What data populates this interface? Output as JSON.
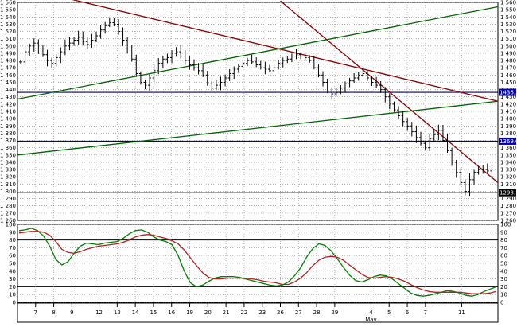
{
  "chart_data": [
    {
      "type": "line",
      "title": "",
      "xlabel": "",
      "ylabel": "",
      "ylim": [
        1260,
        1560
      ],
      "yticks": [
        1260,
        1270,
        1280,
        1290,
        1300,
        1310,
        1320,
        1330,
        1340,
        1350,
        1360,
        1370,
        1380,
        1390,
        1400,
        1410,
        1420,
        1430,
        1440,
        1450,
        1460,
        1470,
        1480,
        1490,
        1500,
        1510,
        1520,
        1530,
        1540,
        1550,
        1560
      ],
      "grid": true,
      "x_tick_labels": [
        "7",
        "8",
        "9",
        "12",
        "13",
        "14",
        "15",
        "16",
        "19",
        "20",
        "21",
        "22",
        "23",
        "26",
        "27",
        "28",
        "29",
        "4",
        "5",
        "6",
        "7",
        "11"
      ],
      "x_tick_day_index": [
        2,
        4,
        6,
        9,
        11,
        13,
        15,
        17,
        19,
        21,
        23,
        25,
        27,
        29,
        31,
        33,
        35,
        39,
        41,
        43,
        45,
        49
      ],
      "month_label": "May",
      "month_label_day_index": 39,
      "highlight_labels": [
        "1436.22",
        "1369.0",
        "1298.1"
      ],
      "horizontal_lines": [
        {
          "y": 1436.22,
          "color": "#000066",
          "label": "1436.22"
        },
        {
          "y": 1369.0,
          "color": "#000099",
          "label": "1369.0"
        },
        {
          "y": 1298.1,
          "color": "#000000",
          "label": "1298.1"
        }
      ],
      "trend_lines": [
        {
          "name": "long-downtrend",
          "color": "#8b0000",
          "points": [
            [
              6,
              1564
            ],
            [
              53,
              1424
            ]
          ]
        },
        {
          "name": "steep-downtrend",
          "color": "#8b0000",
          "points": [
            [
              29,
              1562
            ],
            [
              53,
              1312
            ]
          ]
        },
        {
          "name": "upper-channel",
          "color": "#006400",
          "points": [
            [
              0,
              1427
            ],
            [
              53,
              1554
            ]
          ]
        },
        {
          "name": "lower-channel",
          "color": "#006400",
          "points": [
            [
              0,
              1350
            ],
            [
              53,
              1424
            ]
          ]
        }
      ],
      "series": [
        {
          "kind": "ohlc",
          "color": "#000000",
          "close": [
            1478,
            1492,
            1500,
            1504,
            1496,
            1488,
            1480,
            1476,
            1484,
            1492,
            1500,
            1504,
            1508,
            1512,
            1506,
            1502,
            1508,
            1514,
            1522,
            1528,
            1532,
            1530,
            1520,
            1508,
            1496,
            1482,
            1462,
            1450,
            1446,
            1456,
            1466,
            1476,
            1482,
            1484,
            1490,
            1492,
            1486,
            1480,
            1474,
            1470,
            1466,
            1460,
            1448,
            1442,
            1446,
            1450,
            1456,
            1462,
            1468,
            1472,
            1476,
            1480,
            1478,
            1474,
            1470,
            1468,
            1466,
            1470,
            1476,
            1480,
            1482,
            1486,
            1488,
            1486,
            1484,
            1480,
            1470,
            1460,
            1450,
            1438,
            1434,
            1436,
            1442,
            1448,
            1452,
            1456,
            1460,
            1462,
            1456,
            1450,
            1446,
            1440,
            1430,
            1420,
            1412,
            1404,
            1396,
            1390,
            1382,
            1374,
            1366,
            1360,
            1372,
            1378,
            1384,
            1370,
            1356,
            1340,
            1326,
            1312,
            1300,
            1316,
            1326,
            1330,
            1330,
            1328,
            1320
          ]
        }
      ]
    },
    {
      "type": "line",
      "title": "",
      "xlabel": "",
      "ylabel": "",
      "ylim": [
        0,
        100
      ],
      "yticks": [
        0,
        10,
        20,
        30,
        40,
        50,
        60,
        70,
        80,
        90,
        100
      ],
      "grid": true,
      "reference_lines": [
        20,
        80
      ],
      "series": [
        {
          "name": "",
          "color": "#008000",
          "values": [
            92,
            93,
            95,
            92,
            85,
            72,
            55,
            48,
            52,
            63,
            72,
            76,
            75,
            74,
            76,
            77,
            78,
            82,
            88,
            92,
            93,
            90,
            84,
            80,
            78,
            74,
            60,
            40,
            25,
            20,
            22,
            27,
            31,
            33,
            33,
            33,
            32,
            30,
            28,
            26,
            24,
            22,
            21,
            22,
            26,
            34,
            44,
            58,
            69,
            75,
            73,
            66,
            56,
            45,
            35,
            28,
            26,
            29,
            33,
            35,
            34,
            30,
            24,
            18,
            12,
            9,
            8,
            9,
            11,
            13,
            15,
            14,
            12,
            9,
            8,
            10,
            14,
            17,
            20
          ]
        },
        {
          "name": "",
          "color": "#b22222",
          "values": [
            89,
            90,
            91,
            91,
            90,
            86,
            78,
            68,
            64,
            63,
            65,
            68,
            70,
            72,
            73,
            74,
            75,
            77,
            80,
            84,
            86,
            87,
            86,
            84,
            82,
            79,
            75,
            67,
            57,
            47,
            38,
            32,
            30,
            30,
            31,
            31,
            31,
            31,
            30,
            29,
            27,
            26,
            25,
            23,
            23,
            26,
            31,
            38,
            47,
            54,
            58,
            59,
            58,
            54,
            48,
            42,
            36,
            32,
            31,
            32,
            33,
            32,
            30,
            27,
            23,
            19,
            16,
            14,
            13,
            13,
            13,
            13,
            13,
            12,
            11,
            11,
            11,
            12,
            14
          ]
        }
      ]
    }
  ]
}
